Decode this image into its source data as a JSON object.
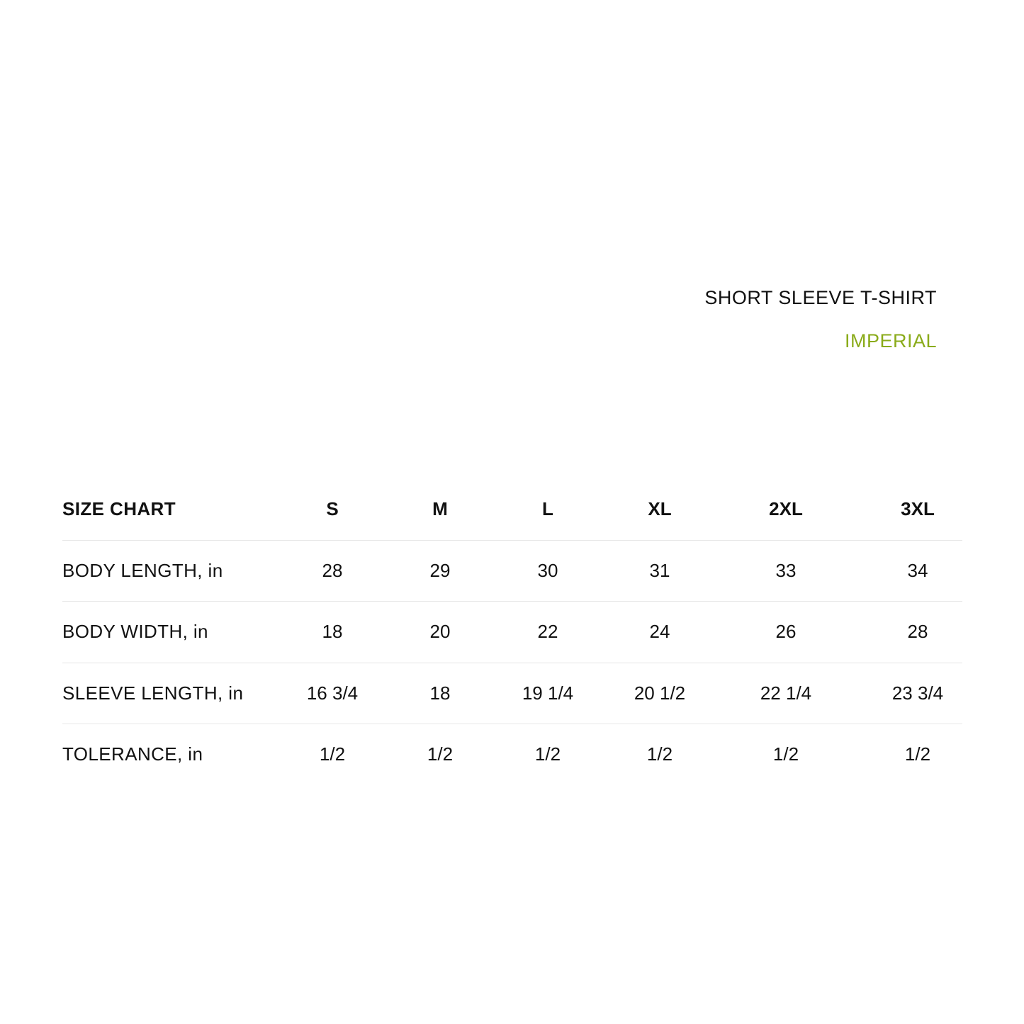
{
  "title": "SHORT SLEEVE T-SHIRT",
  "subtitle": "IMPERIAL",
  "colors": {
    "accent": "#8aab1a",
    "text": "#111111",
    "divider": "#e6e6e6"
  },
  "table": {
    "header": {
      "label": "SIZE CHART",
      "sizes": [
        "S",
        "M",
        "L",
        "XL",
        "2XL",
        "3XL"
      ]
    },
    "rows": [
      {
        "label": "BODY LENGTH, in",
        "values": [
          "28",
          "29",
          "30",
          "31",
          "33",
          "34"
        ]
      },
      {
        "label": "BODY WIDTH, in",
        "values": [
          "18",
          "20",
          "22",
          "24",
          "26",
          "28"
        ]
      },
      {
        "label": "SLEEVE LENGTH, in",
        "values": [
          "16 3/4",
          "18",
          "19 1/4",
          "20 1/2",
          "22 1/4",
          "23 3/4"
        ]
      },
      {
        "label": "TOLERANCE, in",
        "values": [
          "1/2",
          "1/2",
          "1/2",
          "1/2",
          "1/2",
          "1/2"
        ]
      }
    ]
  }
}
